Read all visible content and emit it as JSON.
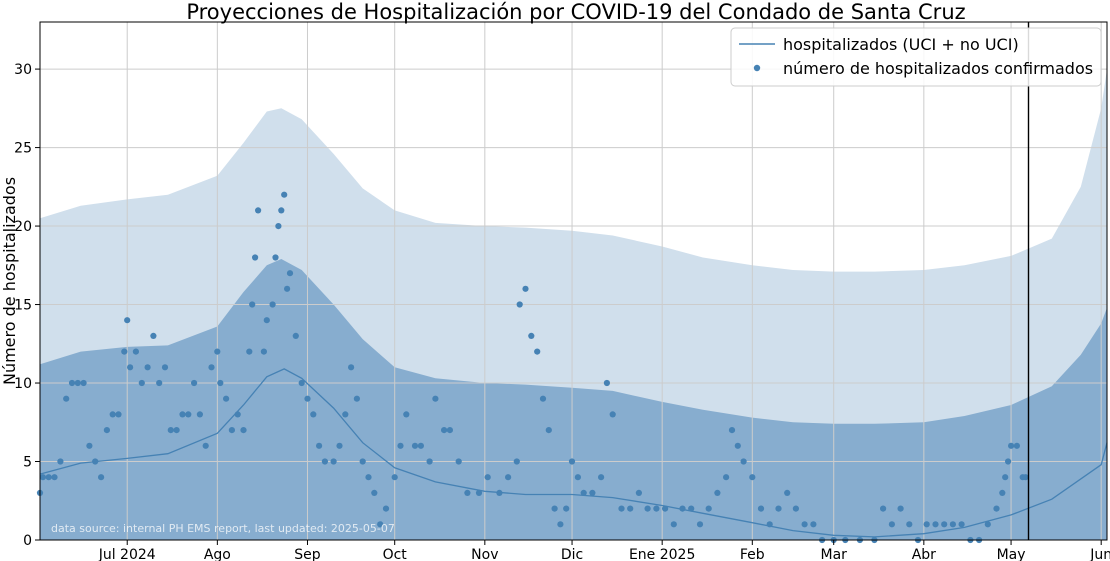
{
  "chart_data": {
    "type": "line",
    "title": "Proyecciones de Hospitalización por COVID-19 del Condado de Santa Cruz",
    "xlabel": "",
    "ylabel": "Número de hospitalizados",
    "ylim": [
      0,
      33
    ],
    "xlim": [
      "2024-06-01",
      "2025-06-03"
    ],
    "grid": true,
    "legend_placement": "top-right",
    "annotation": "data source: internal PH EMS report, last updated: 2025-05-07",
    "current_date_line": "2025-05-07",
    "x_ticks": [
      {
        "date": "2024-07-01",
        "label": "Jul 2024"
      },
      {
        "date": "2024-08-01",
        "label": "Ago"
      },
      {
        "date": "2024-09-01",
        "label": "Sep"
      },
      {
        "date": "2024-10-01",
        "label": "Oct"
      },
      {
        "date": "2024-11-01",
        "label": "Nov"
      },
      {
        "date": "2024-12-01",
        "label": "Dic"
      },
      {
        "date": "2025-01-01",
        "label": "Ene 2025"
      },
      {
        "date": "2025-02-01",
        "label": "Feb"
      },
      {
        "date": "2025-03-01",
        "label": "Mar"
      },
      {
        "date": "2025-04-01",
        "label": "Abr"
      },
      {
        "date": "2025-05-01",
        "label": "May"
      },
      {
        "date": "2025-06-01",
        "label": "Jun"
      }
    ],
    "y_ticks": [
      0,
      5,
      10,
      15,
      20,
      25,
      30
    ],
    "colors": {
      "line": "#4682b4",
      "points": "#4682b4",
      "outer_band": "#d0dfec",
      "inner_band": "#87adcf",
      "grid": "#cccccc",
      "vline": "#000000"
    },
    "series": [
      {
        "name": "hospitalizados (UCI + no UCI)",
        "kind": "line",
        "points": [
          [
            "2024-06-01",
            4.2
          ],
          [
            "2024-06-15",
            4.9
          ],
          [
            "2024-07-01",
            5.2
          ],
          [
            "2024-07-15",
            5.5
          ],
          [
            "2024-08-01",
            6.8
          ],
          [
            "2024-08-10",
            8.6
          ],
          [
            "2024-08-18",
            10.4
          ],
          [
            "2024-08-24",
            10.9
          ],
          [
            "2024-08-30",
            10.3
          ],
          [
            "2024-09-10",
            8.4
          ],
          [
            "2024-09-20",
            6.2
          ],
          [
            "2024-10-01",
            4.6
          ],
          [
            "2024-10-15",
            3.7
          ],
          [
            "2024-11-01",
            3.1
          ],
          [
            "2024-11-15",
            2.9
          ],
          [
            "2024-12-01",
            2.9
          ],
          [
            "2024-12-15",
            2.7
          ],
          [
            "2025-01-01",
            2.2
          ],
          [
            "2025-01-15",
            1.7
          ],
          [
            "2025-02-01",
            1.1
          ],
          [
            "2025-02-15",
            0.6
          ],
          [
            "2025-03-01",
            0.3
          ],
          [
            "2025-03-15",
            0.2
          ],
          [
            "2025-04-01",
            0.4
          ],
          [
            "2025-04-15",
            0.8
          ],
          [
            "2025-05-01",
            1.6
          ],
          [
            "2025-05-15",
            2.6
          ],
          [
            "2025-06-01",
            4.8
          ],
          [
            "2025-06-03",
            6.2
          ]
        ]
      },
      {
        "name": "número de hospitalizados confirmados",
        "kind": "scatter",
        "points": [
          [
            "2024-06-01",
            3
          ],
          [
            "2024-06-02",
            4
          ],
          [
            "2024-06-04",
            4
          ],
          [
            "2024-06-06",
            4
          ],
          [
            "2024-06-08",
            5
          ],
          [
            "2024-06-10",
            9
          ],
          [
            "2024-06-12",
            10
          ],
          [
            "2024-06-14",
            10
          ],
          [
            "2024-06-16",
            10
          ],
          [
            "2024-06-18",
            6
          ],
          [
            "2024-06-20",
            5
          ],
          [
            "2024-06-22",
            4
          ],
          [
            "2024-06-24",
            7
          ],
          [
            "2024-06-26",
            8
          ],
          [
            "2024-06-28",
            8
          ],
          [
            "2024-06-30",
            12
          ],
          [
            "2024-07-01",
            14
          ],
          [
            "2024-07-02",
            11
          ],
          [
            "2024-07-04",
            12
          ],
          [
            "2024-07-06",
            10
          ],
          [
            "2024-07-08",
            11
          ],
          [
            "2024-07-10",
            13
          ],
          [
            "2024-07-12",
            10
          ],
          [
            "2024-07-14",
            11
          ],
          [
            "2024-07-16",
            7
          ],
          [
            "2024-07-18",
            7
          ],
          [
            "2024-07-20",
            8
          ],
          [
            "2024-07-22",
            8
          ],
          [
            "2024-07-24",
            10
          ],
          [
            "2024-07-26",
            8
          ],
          [
            "2024-07-28",
            6
          ],
          [
            "2024-07-30",
            11
          ],
          [
            "2024-08-01",
            12
          ],
          [
            "2024-08-02",
            10
          ],
          [
            "2024-08-04",
            9
          ],
          [
            "2024-08-06",
            7
          ],
          [
            "2024-08-08",
            8
          ],
          [
            "2024-08-10",
            7
          ],
          [
            "2024-08-12",
            12
          ],
          [
            "2024-08-13",
            15
          ],
          [
            "2024-08-14",
            18
          ],
          [
            "2024-08-15",
            21
          ],
          [
            "2024-08-17",
            12
          ],
          [
            "2024-08-18",
            14
          ],
          [
            "2024-08-20",
            15
          ],
          [
            "2024-08-21",
            18
          ],
          [
            "2024-08-22",
            20
          ],
          [
            "2024-08-23",
            21
          ],
          [
            "2024-08-24",
            22
          ],
          [
            "2024-08-25",
            16
          ],
          [
            "2024-08-26",
            17
          ],
          [
            "2024-08-28",
            13
          ],
          [
            "2024-08-30",
            10
          ],
          [
            "2024-09-01",
            9
          ],
          [
            "2024-09-03",
            8
          ],
          [
            "2024-09-05",
            6
          ],
          [
            "2024-09-07",
            5
          ],
          [
            "2024-09-10",
            5
          ],
          [
            "2024-09-12",
            6
          ],
          [
            "2024-09-14",
            8
          ],
          [
            "2024-09-16",
            11
          ],
          [
            "2024-09-18",
            9
          ],
          [
            "2024-09-20",
            5
          ],
          [
            "2024-09-22",
            4
          ],
          [
            "2024-09-24",
            3
          ],
          [
            "2024-09-26",
            1
          ],
          [
            "2024-09-28",
            2
          ],
          [
            "2024-10-01",
            4
          ],
          [
            "2024-10-03",
            6
          ],
          [
            "2024-10-05",
            8
          ],
          [
            "2024-10-08",
            6
          ],
          [
            "2024-10-10",
            6
          ],
          [
            "2024-10-13",
            5
          ],
          [
            "2024-10-15",
            9
          ],
          [
            "2024-10-18",
            7
          ],
          [
            "2024-10-20",
            7
          ],
          [
            "2024-10-23",
            5
          ],
          [
            "2024-10-26",
            3
          ],
          [
            "2024-10-30",
            3
          ],
          [
            "2024-11-02",
            4
          ],
          [
            "2024-11-06",
            3
          ],
          [
            "2024-11-09",
            4
          ],
          [
            "2024-11-12",
            5
          ],
          [
            "2024-11-13",
            15
          ],
          [
            "2024-11-15",
            16
          ],
          [
            "2024-11-17",
            13
          ],
          [
            "2024-11-19",
            12
          ],
          [
            "2024-11-21",
            9
          ],
          [
            "2024-11-23",
            7
          ],
          [
            "2024-11-25",
            2
          ],
          [
            "2024-11-27",
            1
          ],
          [
            "2024-11-29",
            2
          ],
          [
            "2024-12-01",
            5
          ],
          [
            "2024-12-03",
            4
          ],
          [
            "2024-12-05",
            3
          ],
          [
            "2024-12-08",
            3
          ],
          [
            "2024-12-11",
            4
          ],
          [
            "2024-12-13",
            10
          ],
          [
            "2024-12-15",
            8
          ],
          [
            "2024-12-18",
            2
          ],
          [
            "2024-12-21",
            2
          ],
          [
            "2024-12-24",
            3
          ],
          [
            "2024-12-27",
            2
          ],
          [
            "2024-12-30",
            2
          ],
          [
            "2025-01-02",
            2
          ],
          [
            "2025-01-05",
            1
          ],
          [
            "2025-01-08",
            2
          ],
          [
            "2025-01-11",
            2
          ],
          [
            "2025-01-14",
            1
          ],
          [
            "2025-01-17",
            2
          ],
          [
            "2025-01-20",
            3
          ],
          [
            "2025-01-23",
            4
          ],
          [
            "2025-01-25",
            7
          ],
          [
            "2025-01-27",
            6
          ],
          [
            "2025-01-29",
            5
          ],
          [
            "2025-02-01",
            4
          ],
          [
            "2025-02-04",
            2
          ],
          [
            "2025-02-07",
            1
          ],
          [
            "2025-02-10",
            2
          ],
          [
            "2025-02-13",
            3
          ],
          [
            "2025-02-16",
            2
          ],
          [
            "2025-02-19",
            1
          ],
          [
            "2025-02-22",
            1
          ],
          [
            "2025-02-25",
            0
          ],
          [
            "2025-03-01",
            0
          ],
          [
            "2025-03-05",
            0
          ],
          [
            "2025-03-10",
            0
          ],
          [
            "2025-03-15",
            0
          ],
          [
            "2025-03-18",
            2
          ],
          [
            "2025-03-21",
            1
          ],
          [
            "2025-03-24",
            2
          ],
          [
            "2025-03-27",
            1
          ],
          [
            "2025-03-30",
            0
          ],
          [
            "2025-04-02",
            1
          ],
          [
            "2025-04-05",
            1
          ],
          [
            "2025-04-08",
            1
          ],
          [
            "2025-04-11",
            1
          ],
          [
            "2025-04-14",
            1
          ],
          [
            "2025-04-17",
            0
          ],
          [
            "2025-04-20",
            0
          ],
          [
            "2025-04-23",
            1
          ],
          [
            "2025-04-26",
            2
          ],
          [
            "2025-04-28",
            3
          ],
          [
            "2025-04-29",
            4
          ],
          [
            "2025-04-30",
            5
          ],
          [
            "2025-05-01",
            6
          ],
          [
            "2025-05-03",
            6
          ],
          [
            "2025-05-05",
            4
          ],
          [
            "2025-05-06",
            4
          ]
        ]
      }
    ],
    "bands": [
      {
        "role": "outer",
        "upper": [
          [
            "2024-06-01",
            20.5
          ],
          [
            "2024-06-15",
            21.3
          ],
          [
            "2024-07-01",
            21.7
          ],
          [
            "2024-07-15",
            22.0
          ],
          [
            "2024-08-01",
            23.2
          ],
          [
            "2024-08-10",
            25.3
          ],
          [
            "2024-08-18",
            27.3
          ],
          [
            "2024-08-23",
            27.5
          ],
          [
            "2024-08-30",
            26.8
          ],
          [
            "2024-09-10",
            24.6
          ],
          [
            "2024-09-20",
            22.4
          ],
          [
            "2024-10-01",
            21.0
          ],
          [
            "2024-10-15",
            20.2
          ],
          [
            "2024-11-01",
            20.0
          ],
          [
            "2024-11-15",
            19.9
          ],
          [
            "2024-12-01",
            19.7
          ],
          [
            "2024-12-15",
            19.4
          ],
          [
            "2025-01-01",
            18.7
          ],
          [
            "2025-01-15",
            18.0
          ],
          [
            "2025-02-01",
            17.5
          ],
          [
            "2025-02-15",
            17.2
          ],
          [
            "2025-03-01",
            17.1
          ],
          [
            "2025-03-15",
            17.1
          ],
          [
            "2025-04-01",
            17.2
          ],
          [
            "2025-04-15",
            17.5
          ],
          [
            "2025-05-01",
            18.1
          ],
          [
            "2025-05-15",
            19.2
          ],
          [
            "2025-05-25",
            22.5
          ],
          [
            "2025-06-01",
            27.5
          ],
          [
            "2025-06-03",
            30.0
          ]
        ],
        "lower": [
          [
            "2024-06-01",
            0.0
          ],
          [
            "2024-08-05",
            0.0
          ],
          [
            "2024-08-12",
            1.6
          ],
          [
            "2024-08-20",
            3.2
          ],
          [
            "2024-08-24",
            3.8
          ],
          [
            "2024-08-30",
            3.4
          ],
          [
            "2024-09-06",
            2.0
          ],
          [
            "2024-09-14",
            0.4
          ],
          [
            "2024-09-18",
            0.0
          ],
          [
            "2025-06-03",
            0.0
          ]
        ]
      },
      {
        "role": "inner",
        "upper": [
          [
            "2024-06-01",
            11.2
          ],
          [
            "2024-06-15",
            12.0
          ],
          [
            "2024-07-01",
            12.3
          ],
          [
            "2024-07-15",
            12.4
          ],
          [
            "2024-08-01",
            13.6
          ],
          [
            "2024-08-10",
            15.8
          ],
          [
            "2024-08-18",
            17.5
          ],
          [
            "2024-08-23",
            17.9
          ],
          [
            "2024-08-30",
            17.2
          ],
          [
            "2024-09-10",
            15.0
          ],
          [
            "2024-09-20",
            12.8
          ],
          [
            "2024-10-01",
            11.0
          ],
          [
            "2024-10-15",
            10.3
          ],
          [
            "2024-11-01",
            10.0
          ],
          [
            "2024-11-15",
            9.9
          ],
          [
            "2024-12-01",
            9.7
          ],
          [
            "2024-12-15",
            9.5
          ],
          [
            "2025-01-01",
            8.8
          ],
          [
            "2025-01-15",
            8.3
          ],
          [
            "2025-02-01",
            7.8
          ],
          [
            "2025-02-15",
            7.5
          ],
          [
            "2025-03-01",
            7.4
          ],
          [
            "2025-03-15",
            7.4
          ],
          [
            "2025-04-01",
            7.5
          ],
          [
            "2025-04-15",
            7.9
          ],
          [
            "2025-05-01",
            8.6
          ],
          [
            "2025-05-15",
            9.8
          ],
          [
            "2025-05-25",
            11.8
          ],
          [
            "2025-06-01",
            13.8
          ],
          [
            "2025-06-03",
            14.8
          ]
        ],
        "lower": [
          [
            "2024-06-01",
            0.0
          ],
          [
            "2025-06-03",
            0.0
          ]
        ]
      }
    ]
  }
}
